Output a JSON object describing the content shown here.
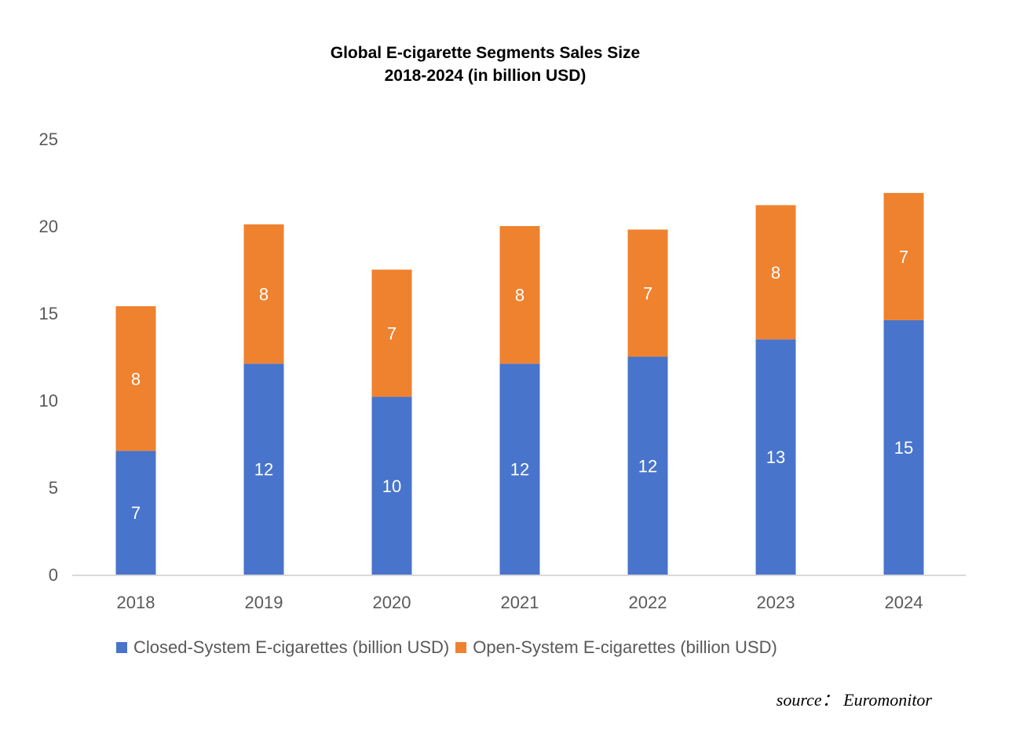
{
  "chart_data": {
    "type": "bar",
    "stacked": true,
    "title": "Global E-cigarette Segments Sales Size",
    "subtitle": "2018-2024 (in billion USD)",
    "xlabel": "",
    "ylabel": "",
    "ylim": [
      0,
      25
    ],
    "yticks": [
      0,
      5,
      10,
      15,
      20,
      25
    ],
    "grid": false,
    "legend_position": "bottom",
    "categories": [
      "2018",
      "2019",
      "2020",
      "2021",
      "2022",
      "2023",
      "2024"
    ],
    "series": [
      {
        "name": "Closed-System E-cigarettes (billion USD)",
        "color": "#4874CB",
        "values": [
          7.1,
          12.1,
          10.2,
          12.1,
          12.5,
          13.5,
          14.6
        ],
        "labels": [
          "7",
          "12",
          "10",
          "12",
          "12",
          "13",
          "15"
        ]
      },
      {
        "name": "Open-System E-cigarettes (billion USD)",
        "color": "#EE822F",
        "values": [
          8.3,
          8.0,
          7.3,
          7.9,
          7.3,
          7.7,
          7.3
        ],
        "labels": [
          "8",
          "8",
          "7",
          "8",
          "7",
          "8",
          "7"
        ]
      }
    ],
    "source": "source： Euromonitor"
  }
}
